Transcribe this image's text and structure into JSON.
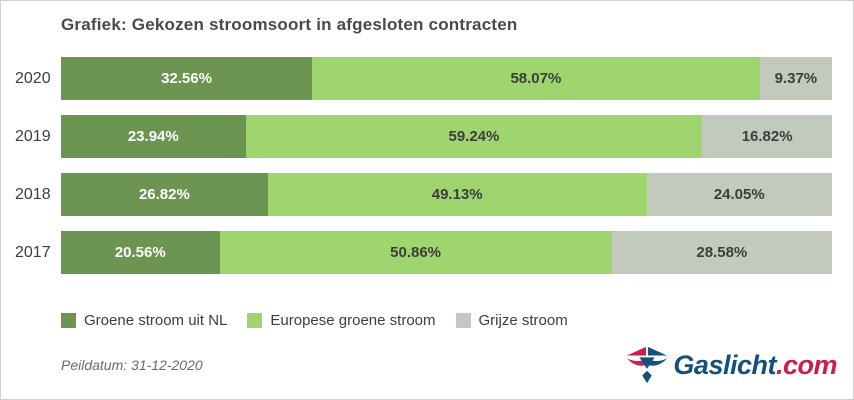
{
  "title": "Grafiek: Gekozen stroomsoort in afgesloten contracten",
  "colors": {
    "border": "#cfd0d1",
    "title_text": "#4a4a4a",
    "axis_text": "#3d3d3d",
    "label_on_dark": "#ffffff",
    "label_on_light": "#3d3d3d",
    "footer_text": "#6a6a6a",
    "logo_blue": "#14517c",
    "logo_red": "#cb1e4b"
  },
  "chart_data": {
    "type": "bar",
    "orientation": "horizontal-stacked",
    "title": "Grafiek: Gekozen stroomsoort in afgesloten contracten",
    "categories": [
      "2020",
      "2019",
      "2018",
      "2017"
    ],
    "series": [
      {
        "name": "Groene stroom uit NL",
        "color": "#6b9551",
        "values": [
          32.56,
          23.94,
          26.82,
          20.56
        ]
      },
      {
        "name": "Europese groene stroom",
        "color": "#9fd56e",
        "values": [
          58.07,
          59.24,
          49.13,
          50.86
        ]
      },
      {
        "name": "Grijze stroom",
        "color": "#c1cabd",
        "values": [
          9.37,
          16.82,
          24.05,
          28.58
        ]
      }
    ],
    "value_format": "percent",
    "value_suffix": "%",
    "xlim": [
      0,
      100
    ],
    "grid": false,
    "legend_position": "bottom-left",
    "data_labels": "inside-center"
  },
  "footer": {
    "peildatum": "Peildatum: 31-12-2020"
  },
  "logo": {
    "name": "Gaslicht",
    "tld": ".com"
  }
}
